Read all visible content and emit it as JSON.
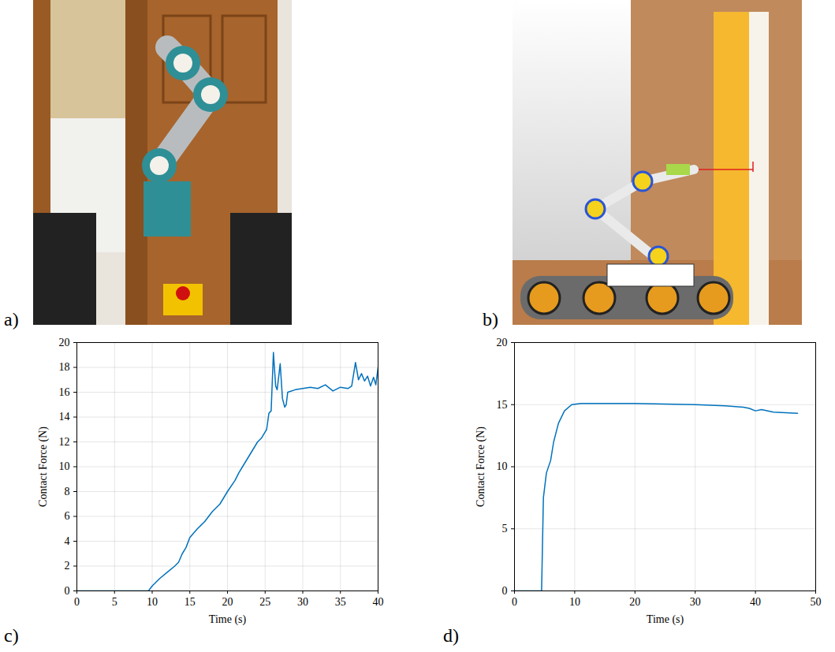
{
  "images": [
    {
      "panel_label": "a)"
    },
    {
      "panel_label": "b)"
    }
  ],
  "chart_data": [
    {
      "type": "line",
      "panel_label": "c)",
      "xlabel": "Time (s)",
      "ylabel": "Contact Force (N)",
      "x": [
        0,
        5,
        9.5,
        10,
        11,
        12,
        13,
        13.5,
        14,
        14.5,
        15,
        16,
        17,
        17.5,
        18,
        19,
        20,
        21,
        21.5,
        22,
        23,
        24,
        24.5,
        25,
        25.2,
        25.5,
        25.8,
        26.1,
        26.4,
        26.6,
        27,
        27.3,
        27.6,
        27.8,
        28,
        29,
        30,
        31,
        32,
        33,
        34,
        35,
        36,
        36.5,
        37,
        37.4,
        37.8,
        38.2,
        38.6,
        39,
        39.4,
        39.7,
        40
      ],
      "series": [
        {
          "name": "Contact Force",
          "color": "#0072bd",
          "values": [
            0,
            0,
            0,
            0.4,
            1.0,
            1.5,
            2.0,
            2.3,
            3.0,
            3.5,
            4.3,
            5.0,
            5.6,
            6.0,
            6.4,
            7.0,
            8.0,
            8.9,
            9.5,
            10.0,
            11.0,
            12.0,
            12.3,
            12.8,
            13.0,
            14.3,
            14.5,
            19.2,
            16.5,
            16.2,
            18.3,
            15.5,
            14.8,
            15.0,
            16.0,
            16.2,
            16.3,
            16.4,
            16.3,
            16.6,
            16.1,
            16.4,
            16.3,
            16.5,
            18.4,
            17.0,
            17.5,
            16.9,
            17.3,
            16.5,
            17.2,
            16.6,
            18.0
          ]
        }
      ],
      "xlim": [
        0,
        40
      ],
      "xticks": [
        0,
        5,
        10,
        15,
        20,
        25,
        30,
        35,
        40
      ],
      "ylim": [
        0,
        20
      ],
      "yticks": [
        0,
        2,
        4,
        6,
        8,
        10,
        12,
        14,
        16,
        18,
        20
      ],
      "grid": true
    },
    {
      "type": "line",
      "panel_label": "d)",
      "xlabel": "Time (s)",
      "ylabel": "Contact Force (N)",
      "x": [
        0,
        4.5,
        4.8,
        5.3,
        6,
        6.5,
        7.3,
        8.3,
        9.5,
        11,
        15,
        20,
        25,
        30,
        35,
        38,
        39,
        40,
        41,
        43,
        45,
        47
      ],
      "series": [
        {
          "name": "Contact Force",
          "color": "#0072bd",
          "values": [
            0,
            0,
            7.5,
            9.5,
            10.5,
            12.0,
            13.5,
            14.5,
            15.0,
            15.1,
            15.1,
            15.1,
            15.05,
            15.0,
            14.9,
            14.8,
            14.7,
            14.5,
            14.6,
            14.4,
            14.35,
            14.3
          ]
        }
      ],
      "xlim": [
        0,
        50
      ],
      "xticks": [
        0,
        10,
        20,
        30,
        40,
        50
      ],
      "ylim": [
        0,
        20
      ],
      "yticks": [
        0,
        5,
        10,
        15,
        20
      ],
      "grid": true
    }
  ]
}
